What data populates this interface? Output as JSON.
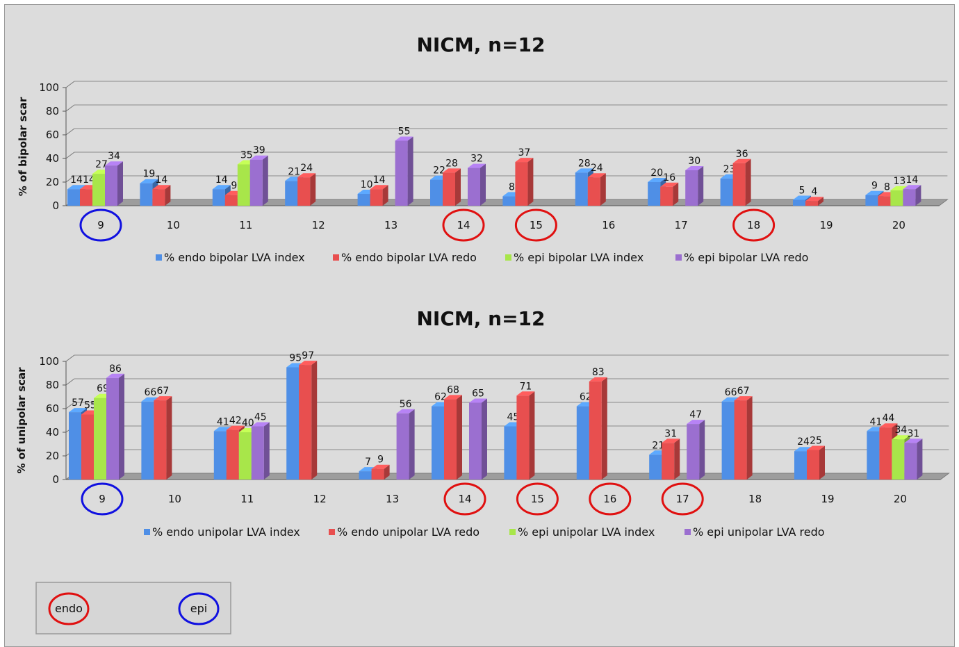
{
  "chart_data": [
    {
      "type": "bar",
      "title": "NICM, n=12",
      "ylabel": "% of bipolar scar",
      "ylim": [
        0,
        100
      ],
      "yticks": [
        0,
        20,
        40,
        60,
        80,
        100
      ],
      "grid": true,
      "legend": "bottom",
      "categories": [
        "9",
        "10",
        "11",
        "12",
        "13",
        "14",
        "15",
        "16",
        "17",
        "18",
        "19",
        "20"
      ],
      "series": [
        {
          "name": "% endo bipolar LVA  index",
          "color": "#4f8fe6",
          "values": [
            14,
            19,
            14,
            21,
            10,
            22,
            8,
            28,
            20,
            23,
            5,
            9
          ]
        },
        {
          "name": "% endo bipolar LVA  redo",
          "color": "#e84f4f",
          "values": [
            14,
            14,
            9,
            24,
            14,
            28,
            37,
            24,
            16,
            36,
            4,
            8
          ]
        },
        {
          "name": "% epi bipolar  LVA  index",
          "color": "#a8e64a",
          "values": [
            27,
            null,
            35,
            null,
            null,
            null,
            null,
            null,
            null,
            null,
            null,
            13
          ]
        },
        {
          "name": "% epi bipolar  LVA  redo",
          "color": "#9b6fd0",
          "values": [
            34,
            null,
            39,
            null,
            55,
            32,
            null,
            null,
            30,
            null,
            null,
            14
          ]
        }
      ],
      "circled": [
        {
          "category": "9",
          "color": "blue"
        },
        {
          "category": "14",
          "color": "red"
        },
        {
          "category": "15",
          "color": "red"
        },
        {
          "category": "18",
          "color": "red"
        }
      ]
    },
    {
      "type": "bar",
      "title": "NICM, n=12",
      "ylabel": "% of unipolar scar",
      "ylim": [
        0,
        100
      ],
      "yticks": [
        0,
        20,
        40,
        60,
        80,
        100
      ],
      "grid": true,
      "legend": "bottom",
      "categories": [
        "9",
        "10",
        "11",
        "12",
        "13",
        "14",
        "15",
        "16",
        "17",
        "18",
        "19",
        "20"
      ],
      "series": [
        {
          "name": "% endo unipolar LVA  index",
          "color": "#4f8fe6",
          "values": [
            57,
            66,
            41,
            95,
            7,
            62,
            45,
            62,
            21,
            66,
            24,
            41
          ]
        },
        {
          "name": "% endo unipolar LVA  redo",
          "color": "#e84f4f",
          "values": [
            55,
            67,
            42,
            97,
            9,
            68,
            71,
            83,
            31,
            67,
            25,
            44
          ]
        },
        {
          "name": "% epi  unipolar LVA index",
          "color": "#a8e64a",
          "values": [
            69,
            null,
            40,
            null,
            null,
            null,
            null,
            null,
            null,
            null,
            null,
            34
          ]
        },
        {
          "name": "% epi  unipolar LVA redo",
          "color": "#9b6fd0",
          "values": [
            86,
            null,
            45,
            null,
            56,
            65,
            null,
            null,
            47,
            null,
            null,
            31
          ]
        }
      ],
      "circled": [
        {
          "category": "9",
          "color": "blue"
        },
        {
          "category": "14",
          "color": "red"
        },
        {
          "category": "15",
          "color": "red"
        },
        {
          "category": "16",
          "color": "red"
        },
        {
          "category": "17",
          "color": "red"
        }
      ]
    }
  ],
  "key": {
    "endo_label": "endo",
    "endo_color": "red",
    "epi_label": "epi",
    "epi_color": "blue"
  }
}
